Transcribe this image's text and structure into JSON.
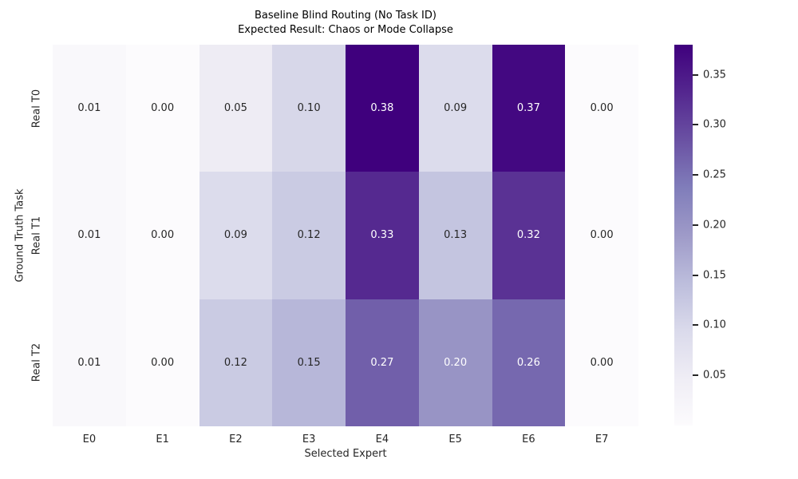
{
  "figure": {
    "title_line1": "Baseline Blind Routing (No Task ID)",
    "title_line2": "Expected Result: Chaos or Mode Collapse"
  },
  "chart_data": {
    "type": "heatmap",
    "title": "Baseline Blind Routing (No Task ID)\nExpected Result: Chaos or Mode Collapse",
    "xlabel": "Selected Expert",
    "ylabel": "Ground Truth Task",
    "columns": [
      "E0",
      "E1",
      "E2",
      "E3",
      "E4",
      "E5",
      "E6",
      "E7"
    ],
    "rows": [
      "Real T0",
      "Real T1",
      "Real T2"
    ],
    "values": [
      [
        0.01,
        0.0,
        0.05,
        0.1,
        0.38,
        0.09,
        0.37,
        0.0
      ],
      [
        0.01,
        0.0,
        0.09,
        0.12,
        0.33,
        0.13,
        0.32,
        0.0
      ],
      [
        0.01,
        0.0,
        0.12,
        0.15,
        0.27,
        0.2,
        0.26,
        0.0
      ]
    ],
    "annot_decimals": 2,
    "vmin": 0.0,
    "vmax": 0.38,
    "grid": false,
    "legend": null,
    "colormap": {
      "name": "Purples",
      "stops": [
        {
          "pos": 0.0,
          "color": "#fcfbfd"
        },
        {
          "pos": 0.125,
          "color": "#efedf5"
        },
        {
          "pos": 0.25,
          "color": "#dadaeb"
        },
        {
          "pos": 0.375,
          "color": "#bcbddc"
        },
        {
          "pos": 0.5,
          "color": "#9e9ac8"
        },
        {
          "pos": 0.625,
          "color": "#807dba"
        },
        {
          "pos": 0.75,
          "color": "#6a51a3"
        },
        {
          "pos": 0.875,
          "color": "#54278f"
        },
        {
          "pos": 1.0,
          "color": "#3f007d"
        }
      ]
    },
    "colorbar": {
      "position": "right",
      "ticks": [
        0.05,
        0.1,
        0.15,
        0.2,
        0.25,
        0.3,
        0.35
      ],
      "tick_decimals": 2
    },
    "annotation_colors": {
      "dark_text": "#262626",
      "light_text": "#ffffff"
    }
  }
}
